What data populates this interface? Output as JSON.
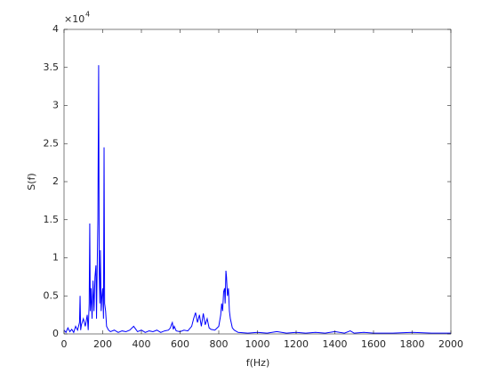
{
  "chart_data": {
    "type": "line",
    "xlabel": "f(Hz)",
    "ylabel": "S(f)",
    "y_multiplier": {
      "base": "×10",
      "exponent": "4"
    },
    "xlim": [
      0,
      2000
    ],
    "xticks": [
      0,
      200,
      400,
      600,
      800,
      1000,
      1200,
      1400,
      1600,
      1800,
      2000
    ],
    "ylim": [
      0,
      4
    ],
    "yticks": [
      0,
      0.5,
      1,
      1.5,
      2,
      2.5,
      3,
      3.5,
      4
    ],
    "grid": false,
    "x": [
      0,
      10,
      20,
      30,
      40,
      50,
      60,
      70,
      80,
      83,
      86,
      90,
      100,
      110,
      120,
      125,
      130,
      133,
      136,
      140,
      145,
      150,
      155,
      160,
      165,
      168,
      170,
      175,
      179,
      182,
      185,
      188,
      192,
      196,
      200,
      204,
      207,
      210,
      215,
      220,
      230,
      240,
      260,
      280,
      300,
      320,
      340,
      360,
      380,
      400,
      420,
      440,
      460,
      480,
      500,
      520,
      540,
      550,
      555,
      560,
      565,
      570,
      580,
      600,
      620,
      640,
      660,
      670,
      680,
      690,
      700,
      710,
      720,
      730,
      740,
      750,
      760,
      780,
      800,
      810,
      815,
      820,
      825,
      830,
      833,
      837,
      840,
      845,
      850,
      855,
      860,
      870,
      880,
      900,
      950,
      1000,
      1050,
      1100,
      1150,
      1200,
      1250,
      1300,
      1350,
      1400,
      1450,
      1480,
      1500,
      1550,
      1600,
      1700,
      1800,
      1900,
      2000
    ],
    "series": [
      {
        "name": "S(f)",
        "color": "#0000ff",
        "values": [
          0.05,
          0.02,
          0.08,
          0.03,
          0.06,
          0.02,
          0.1,
          0.05,
          0.15,
          0.5,
          0.05,
          0.12,
          0.2,
          0.1,
          0.25,
          0.05,
          0.4,
          1.45,
          0.3,
          0.6,
          0.2,
          0.7,
          0.3,
          0.75,
          0.9,
          0.2,
          0.6,
          1.5,
          3.53,
          0.8,
          0.4,
          1.1,
          0.3,
          0.5,
          0.6,
          0.2,
          2.45,
          0.4,
          0.3,
          0.1,
          0.05,
          0.03,
          0.05,
          0.02,
          0.04,
          0.03,
          0.05,
          0.1,
          0.03,
          0.05,
          0.02,
          0.04,
          0.03,
          0.05,
          0.02,
          0.04,
          0.05,
          0.08,
          0.12,
          0.15,
          0.06,
          0.1,
          0.04,
          0.03,
          0.05,
          0.04,
          0.1,
          0.2,
          0.28,
          0.15,
          0.25,
          0.1,
          0.27,
          0.12,
          0.2,
          0.08,
          0.06,
          0.05,
          0.1,
          0.25,
          0.4,
          0.3,
          0.55,
          0.6,
          0.4,
          0.83,
          0.75,
          0.5,
          0.6,
          0.3,
          0.2,
          0.08,
          0.05,
          0.02,
          0.01,
          0.02,
          0.01,
          0.03,
          0.01,
          0.02,
          0.01,
          0.02,
          0.01,
          0.03,
          0.01,
          0.04,
          0.01,
          0.02,
          0.01,
          0.01,
          0.02,
          0.01,
          0.01
        ]
      }
    ]
  }
}
